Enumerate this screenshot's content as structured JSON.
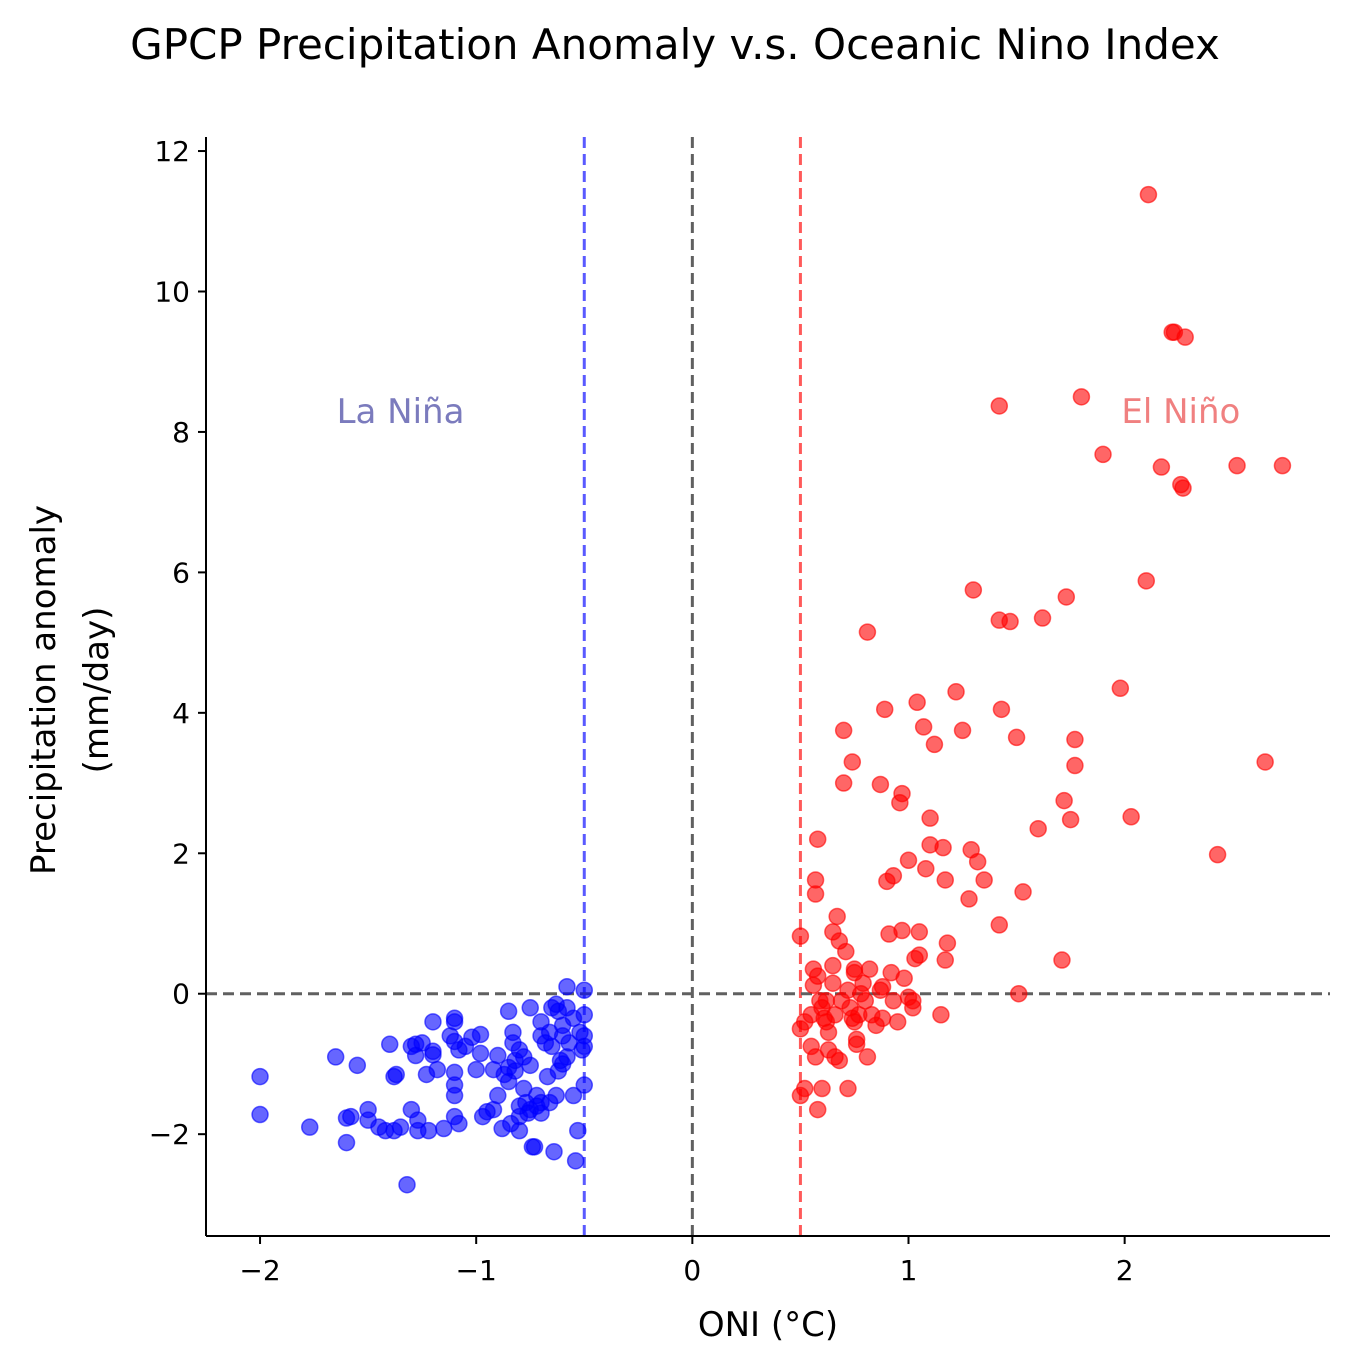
{
  "chart_data": {
    "type": "scatter",
    "title": "GPCP Precipitation Anomaly v.s. Oceanic Nino Index",
    "xlabel": "ONI (°C)",
    "ylabel_line1": "Precipitation anomaly",
    "ylabel_line2": "(mm/day)",
    "xlim": [
      -2.25,
      2.95
    ],
    "ylim": [
      -3.45,
      12.2
    ],
    "xticks": [
      {
        "value": -2,
        "label": "−2"
      },
      {
        "value": -1,
        "label": "−1"
      },
      {
        "value": 0,
        "label": "0"
      },
      {
        "value": 1,
        "label": "1"
      },
      {
        "value": 2,
        "label": "2"
      }
    ],
    "yticks": [
      {
        "value": -2,
        "label": "−2"
      },
      {
        "value": 0,
        "label": "0"
      },
      {
        "value": 2,
        "label": "2"
      },
      {
        "value": 4,
        "label": "4"
      },
      {
        "value": 6,
        "label": "6"
      },
      {
        "value": 8,
        "label": "8"
      },
      {
        "value": 10,
        "label": "10"
      },
      {
        "value": 12,
        "label": "12"
      }
    ],
    "grid": false,
    "reference_lines": [
      {
        "axis": "x",
        "value": -0.5,
        "color": "#5a5aff"
      },
      {
        "axis": "x",
        "value": 0,
        "color": "#606060"
      },
      {
        "axis": "x",
        "value": 0.5,
        "color": "#ff5a5a"
      },
      {
        "axis": "y",
        "value": 0,
        "color": "#606060"
      }
    ],
    "annotations": [
      {
        "text": "La Niña",
        "x": -1.35,
        "y": 8.3,
        "color": "#7b7bbd"
      },
      {
        "text": "El Niño",
        "x": 2.26,
        "y": 8.3,
        "color": "#f08080"
      }
    ],
    "series": [
      {
        "color": "#0000ff",
        "points": [
          [
            -2.0,
            -1.18
          ],
          [
            -2.0,
            -1.72
          ],
          [
            -1.77,
            -1.9
          ],
          [
            -1.65,
            -0.9
          ],
          [
            -1.6,
            -1.77
          ],
          [
            -1.6,
            -2.12
          ],
          [
            -1.58,
            -1.75
          ],
          [
            -1.55,
            -1.02
          ],
          [
            -1.5,
            -1.65
          ],
          [
            -1.5,
            -1.8
          ],
          [
            -1.45,
            -1.9
          ],
          [
            -1.42,
            -1.95
          ],
          [
            -1.4,
            -0.72
          ],
          [
            -1.38,
            -1.95
          ],
          [
            -1.38,
            -1.18
          ],
          [
            -1.37,
            -1.15
          ],
          [
            -1.35,
            -1.9
          ],
          [
            -1.32,
            -2.72
          ],
          [
            -1.3,
            -0.75
          ],
          [
            -1.3,
            -1.65
          ],
          [
            -1.28,
            -0.72
          ],
          [
            -1.28,
            -0.88
          ],
          [
            -1.27,
            -1.8
          ],
          [
            -1.27,
            -1.95
          ],
          [
            -1.25,
            -0.7
          ],
          [
            -1.23,
            -1.15
          ],
          [
            -1.22,
            -1.95
          ],
          [
            -1.2,
            -0.4
          ],
          [
            -1.2,
            -0.82
          ],
          [
            -1.2,
            -0.87
          ],
          [
            -1.18,
            -1.08
          ],
          [
            -1.15,
            -1.92
          ],
          [
            -1.12,
            -0.6
          ],
          [
            -1.1,
            -0.35
          ],
          [
            -1.1,
            -0.4
          ],
          [
            -1.1,
            -0.68
          ],
          [
            -1.1,
            -1.12
          ],
          [
            -1.1,
            -1.3
          ],
          [
            -1.1,
            -1.45
          ],
          [
            -1.1,
            -1.75
          ],
          [
            -1.08,
            -1.85
          ],
          [
            -1.08,
            -0.8
          ],
          [
            -1.05,
            -0.75
          ],
          [
            -1.02,
            -0.62
          ],
          [
            -1.0,
            -1.08
          ],
          [
            -0.98,
            -0.58
          ],
          [
            -0.98,
            -0.85
          ],
          [
            -0.97,
            -1.75
          ],
          [
            -0.95,
            -1.68
          ],
          [
            -0.92,
            -1.65
          ],
          [
            -0.92,
            -1.08
          ],
          [
            -0.9,
            -0.88
          ],
          [
            -0.9,
            -1.45
          ],
          [
            -0.88,
            -1.92
          ],
          [
            -0.87,
            -1.15
          ],
          [
            -0.85,
            -0.25
          ],
          [
            -0.85,
            -1.05
          ],
          [
            -0.85,
            -1.25
          ],
          [
            -0.84,
            -1.85
          ],
          [
            -0.83,
            -0.55
          ],
          [
            -0.83,
            -0.7
          ],
          [
            -0.82,
            -0.95
          ],
          [
            -0.82,
            -1.1
          ],
          [
            -0.8,
            -1.6
          ],
          [
            -0.8,
            -1.75
          ],
          [
            -0.8,
            -1.95
          ],
          [
            -0.8,
            -0.8
          ],
          [
            -0.78,
            -0.9
          ],
          [
            -0.78,
            -1.35
          ],
          [
            -0.77,
            -1.55
          ],
          [
            -0.76,
            -1.7
          ],
          [
            -0.75,
            -0.2
          ],
          [
            -0.75,
            -1.02
          ],
          [
            -0.75,
            -1.65
          ],
          [
            -0.74,
            -2.18
          ],
          [
            -0.73,
            -2.18
          ],
          [
            -0.72,
            -1.45
          ],
          [
            -0.72,
            -1.6
          ],
          [
            -0.7,
            -0.4
          ],
          [
            -0.7,
            -0.6
          ],
          [
            -0.7,
            -1.7
          ],
          [
            -0.7,
            -1.55
          ],
          [
            -0.68,
            -0.7
          ],
          [
            -0.67,
            -1.18
          ],
          [
            -0.66,
            -1.55
          ],
          [
            -0.66,
            -0.55
          ],
          [
            -0.65,
            -0.2
          ],
          [
            -0.65,
            -0.75
          ],
          [
            -0.64,
            -2.25
          ],
          [
            -0.63,
            -1.45
          ],
          [
            -0.63,
            -0.15
          ],
          [
            -0.62,
            -0.25
          ],
          [
            -0.62,
            -1.1
          ],
          [
            -0.61,
            -0.95
          ],
          [
            -0.6,
            -0.45
          ],
          [
            -0.6,
            -0.6
          ],
          [
            -0.6,
            -1.0
          ],
          [
            -0.58,
            -0.2
          ],
          [
            -0.58,
            0.1
          ],
          [
            -0.58,
            -0.9
          ],
          [
            -0.57,
            -0.7
          ],
          [
            -0.55,
            -1.45
          ],
          [
            -0.55,
            -0.35
          ],
          [
            -0.54,
            -2.38
          ],
          [
            -0.53,
            -1.95
          ],
          [
            -0.52,
            -0.55
          ],
          [
            -0.51,
            -0.8
          ],
          [
            -0.5,
            0.05
          ],
          [
            -0.5,
            -0.3
          ],
          [
            -0.5,
            -0.6
          ],
          [
            -0.5,
            -0.75
          ],
          [
            -0.5,
            -1.3
          ]
        ]
      },
      {
        "color": "#ff0000",
        "points": [
          [
            0.5,
            0.82
          ],
          [
            0.5,
            -0.5
          ],
          [
            0.5,
            -1.45
          ],
          [
            0.52,
            -0.4
          ],
          [
            0.52,
            -1.35
          ],
          [
            0.55,
            -0.3
          ],
          [
            0.55,
            -0.75
          ],
          [
            0.56,
            0.12
          ],
          [
            0.56,
            0.35
          ],
          [
            0.57,
            1.62
          ],
          [
            0.57,
            1.42
          ],
          [
            0.57,
            -0.9
          ],
          [
            0.58,
            2.2
          ],
          [
            0.58,
            -1.65
          ],
          [
            0.58,
            0.25
          ],
          [
            0.59,
            -0.1
          ],
          [
            0.6,
            -0.2
          ],
          [
            0.6,
            -1.35
          ],
          [
            0.61,
            -0.35
          ],
          [
            0.62,
            -0.1
          ],
          [
            0.62,
            -0.4
          ],
          [
            0.63,
            -0.8
          ],
          [
            0.63,
            -0.55
          ],
          [
            0.65,
            0.15
          ],
          [
            0.65,
            0.4
          ],
          [
            0.65,
            0.88
          ],
          [
            0.66,
            -0.9
          ],
          [
            0.66,
            -0.3
          ],
          [
            0.67,
            1.1
          ],
          [
            0.68,
            0.75
          ],
          [
            0.68,
            -0.95
          ],
          [
            0.69,
            -0.1
          ],
          [
            0.7,
            3.75
          ],
          [
            0.7,
            3.0
          ],
          [
            0.71,
            0.6
          ],
          [
            0.72,
            -1.35
          ],
          [
            0.72,
            0.05
          ],
          [
            0.73,
            -0.2
          ],
          [
            0.74,
            3.3
          ],
          [
            0.74,
            -0.35
          ],
          [
            0.75,
            0.35
          ],
          [
            0.75,
            0.3
          ],
          [
            0.75,
            -0.4
          ],
          [
            0.76,
            -0.65
          ],
          [
            0.76,
            -0.72
          ],
          [
            0.77,
            -0.3
          ],
          [
            0.78,
            0.0
          ],
          [
            0.79,
            0.15
          ],
          [
            0.8,
            -0.1
          ],
          [
            0.81,
            5.15
          ],
          [
            0.81,
            -0.9
          ],
          [
            0.82,
            0.35
          ],
          [
            0.83,
            -0.3
          ],
          [
            0.85,
            -0.45
          ],
          [
            0.87,
            2.98
          ],
          [
            0.87,
            0.05
          ],
          [
            0.88,
            0.1
          ],
          [
            0.88,
            -0.35
          ],
          [
            0.89,
            4.05
          ],
          [
            0.9,
            1.6
          ],
          [
            0.91,
            0.85
          ],
          [
            0.92,
            0.3
          ],
          [
            0.93,
            1.68
          ],
          [
            0.93,
            -0.1
          ],
          [
            0.95,
            -0.4
          ],
          [
            0.96,
            2.72
          ],
          [
            0.97,
            0.9
          ],
          [
            0.97,
            2.85
          ],
          [
            0.98,
            0.22
          ],
          [
            1.0,
            1.9
          ],
          [
            1.0,
            -0.05
          ],
          [
            1.02,
            -0.2
          ],
          [
            1.02,
            -0.1
          ],
          [
            1.03,
            0.5
          ],
          [
            1.04,
            4.15
          ],
          [
            1.05,
            0.55
          ],
          [
            1.05,
            0.88
          ],
          [
            1.07,
            3.8
          ],
          [
            1.08,
            1.78
          ],
          [
            1.1,
            2.5
          ],
          [
            1.1,
            2.12
          ],
          [
            1.12,
            3.55
          ],
          [
            1.15,
            -0.3
          ],
          [
            1.16,
            2.08
          ],
          [
            1.17,
            1.62
          ],
          [
            1.17,
            0.48
          ],
          [
            1.18,
            0.72
          ],
          [
            1.22,
            4.3
          ],
          [
            1.25,
            3.75
          ],
          [
            1.28,
            1.35
          ],
          [
            1.29,
            2.05
          ],
          [
            1.3,
            5.75
          ],
          [
            1.32,
            1.88
          ],
          [
            1.35,
            1.62
          ],
          [
            1.42,
            5.32
          ],
          [
            1.42,
            0.98
          ],
          [
            1.42,
            8.37
          ],
          [
            1.43,
            4.05
          ],
          [
            1.47,
            5.3
          ],
          [
            1.5,
            3.65
          ],
          [
            1.51,
            0.0
          ],
          [
            1.53,
            1.45
          ],
          [
            1.6,
            2.35
          ],
          [
            1.62,
            5.35
          ],
          [
            1.71,
            0.48
          ],
          [
            1.72,
            2.75
          ],
          [
            1.73,
            5.65
          ],
          [
            1.75,
            2.48
          ],
          [
            1.77,
            3.25
          ],
          [
            1.77,
            3.62
          ],
          [
            1.8,
            8.5
          ],
          [
            1.9,
            7.68
          ],
          [
            1.98,
            4.35
          ],
          [
            2.03,
            2.52
          ],
          [
            2.1,
            5.88
          ],
          [
            2.11,
            11.38
          ],
          [
            2.17,
            7.5
          ],
          [
            2.22,
            9.42
          ],
          [
            2.23,
            9.42
          ],
          [
            2.26,
            7.25
          ],
          [
            2.27,
            7.2
          ],
          [
            2.28,
            9.35
          ],
          [
            2.43,
            1.98
          ],
          [
            2.52,
            7.52
          ],
          [
            2.65,
            3.3
          ],
          [
            2.73,
            7.52
          ]
        ]
      }
    ]
  }
}
